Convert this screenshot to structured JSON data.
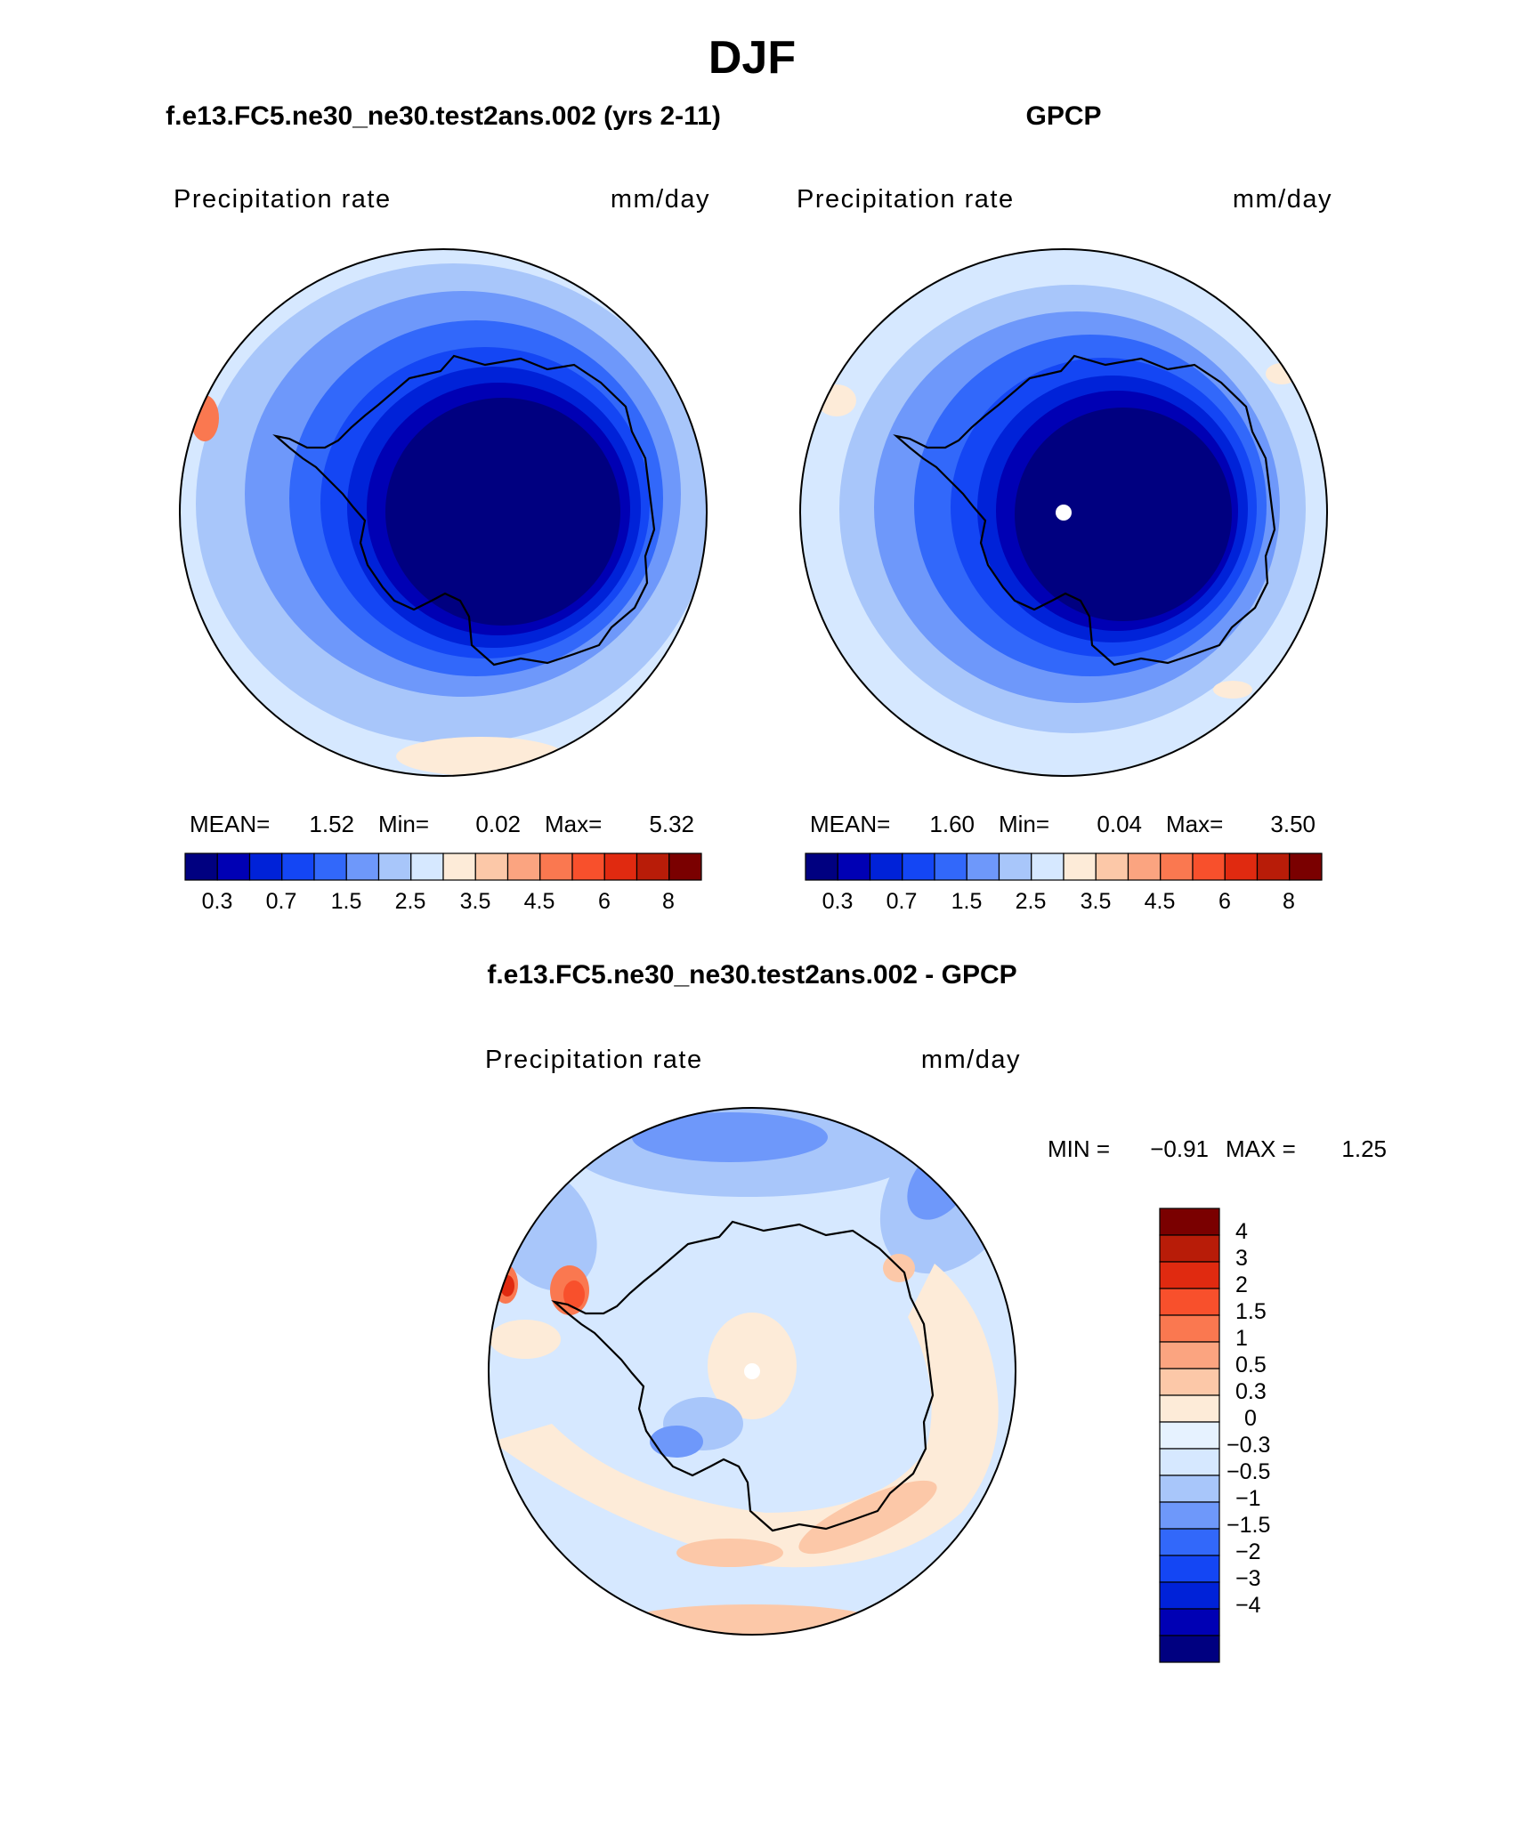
{
  "season_title": "DJF",
  "colors": {
    "abs_levels": [
      "#000080",
      "#0000b4",
      "#0022d8",
      "#1446f4",
      "#3268fa",
      "#6e98fa",
      "#a8c6fa",
      "#d6e8ff",
      "#fdebd8",
      "#fcc8a8",
      "#fba480",
      "#fa7850",
      "#f8502c",
      "#e02a10",
      "#b81c08",
      "#7a0000"
    ],
    "diff_levels": [
      "#7a0000",
      "#b81c08",
      "#e02a10",
      "#f8502c",
      "#fa7850",
      "#fba480",
      "#fcc8a8",
      "#fdebd8",
      "#e6f2ff",
      "#d6e8ff",
      "#a8c6fa",
      "#6e98fa",
      "#3268fa",
      "#1446f4",
      "#0022d8",
      "#0000b4",
      "#000080"
    ]
  },
  "panels": {
    "model": {
      "title": "f.e13.FC5.ne30_ne30.test2ans.002 (yrs 2-11)",
      "variable": "Precipitation rate",
      "units": "mm/day",
      "stats": {
        "mean_label": "MEAN=",
        "mean": "1.52",
        "min_label": "Min=",
        "min": "0.02",
        "max_label": "Max=",
        "max": "5.32"
      },
      "colorbar_labels": [
        "0.3",
        "0.7",
        "1.5",
        "2.5",
        "3.5",
        "4.5",
        "6",
        "8"
      ]
    },
    "obs": {
      "title": "GPCP",
      "variable": "Precipitation rate",
      "units": "mm/day",
      "stats": {
        "mean_label": "MEAN=",
        "mean": "1.60",
        "min_label": "Min=",
        "min": "0.04",
        "max_label": "Max=",
        "max": "3.50"
      },
      "colorbar_labels": [
        "0.3",
        "0.7",
        "1.5",
        "2.5",
        "3.5",
        "4.5",
        "6",
        "8"
      ]
    },
    "diff": {
      "title": "f.e13.FC5.ne30_ne30.test2ans.002 - GPCP",
      "variable": "Precipitation rate",
      "units": "mm/day",
      "stats": {
        "min_label": "MIN =",
        "min": "−0.91",
        "max_label": "MAX =",
        "max": "1.25"
      },
      "colorbar_labels": [
        "4",
        "3",
        "2",
        "1.5",
        "1",
        "0.5",
        "0.3",
        "0",
        "−0.3",
        "−0.5",
        "−1",
        "−1.5",
        "−2",
        "−3",
        "−4"
      ]
    }
  }
}
